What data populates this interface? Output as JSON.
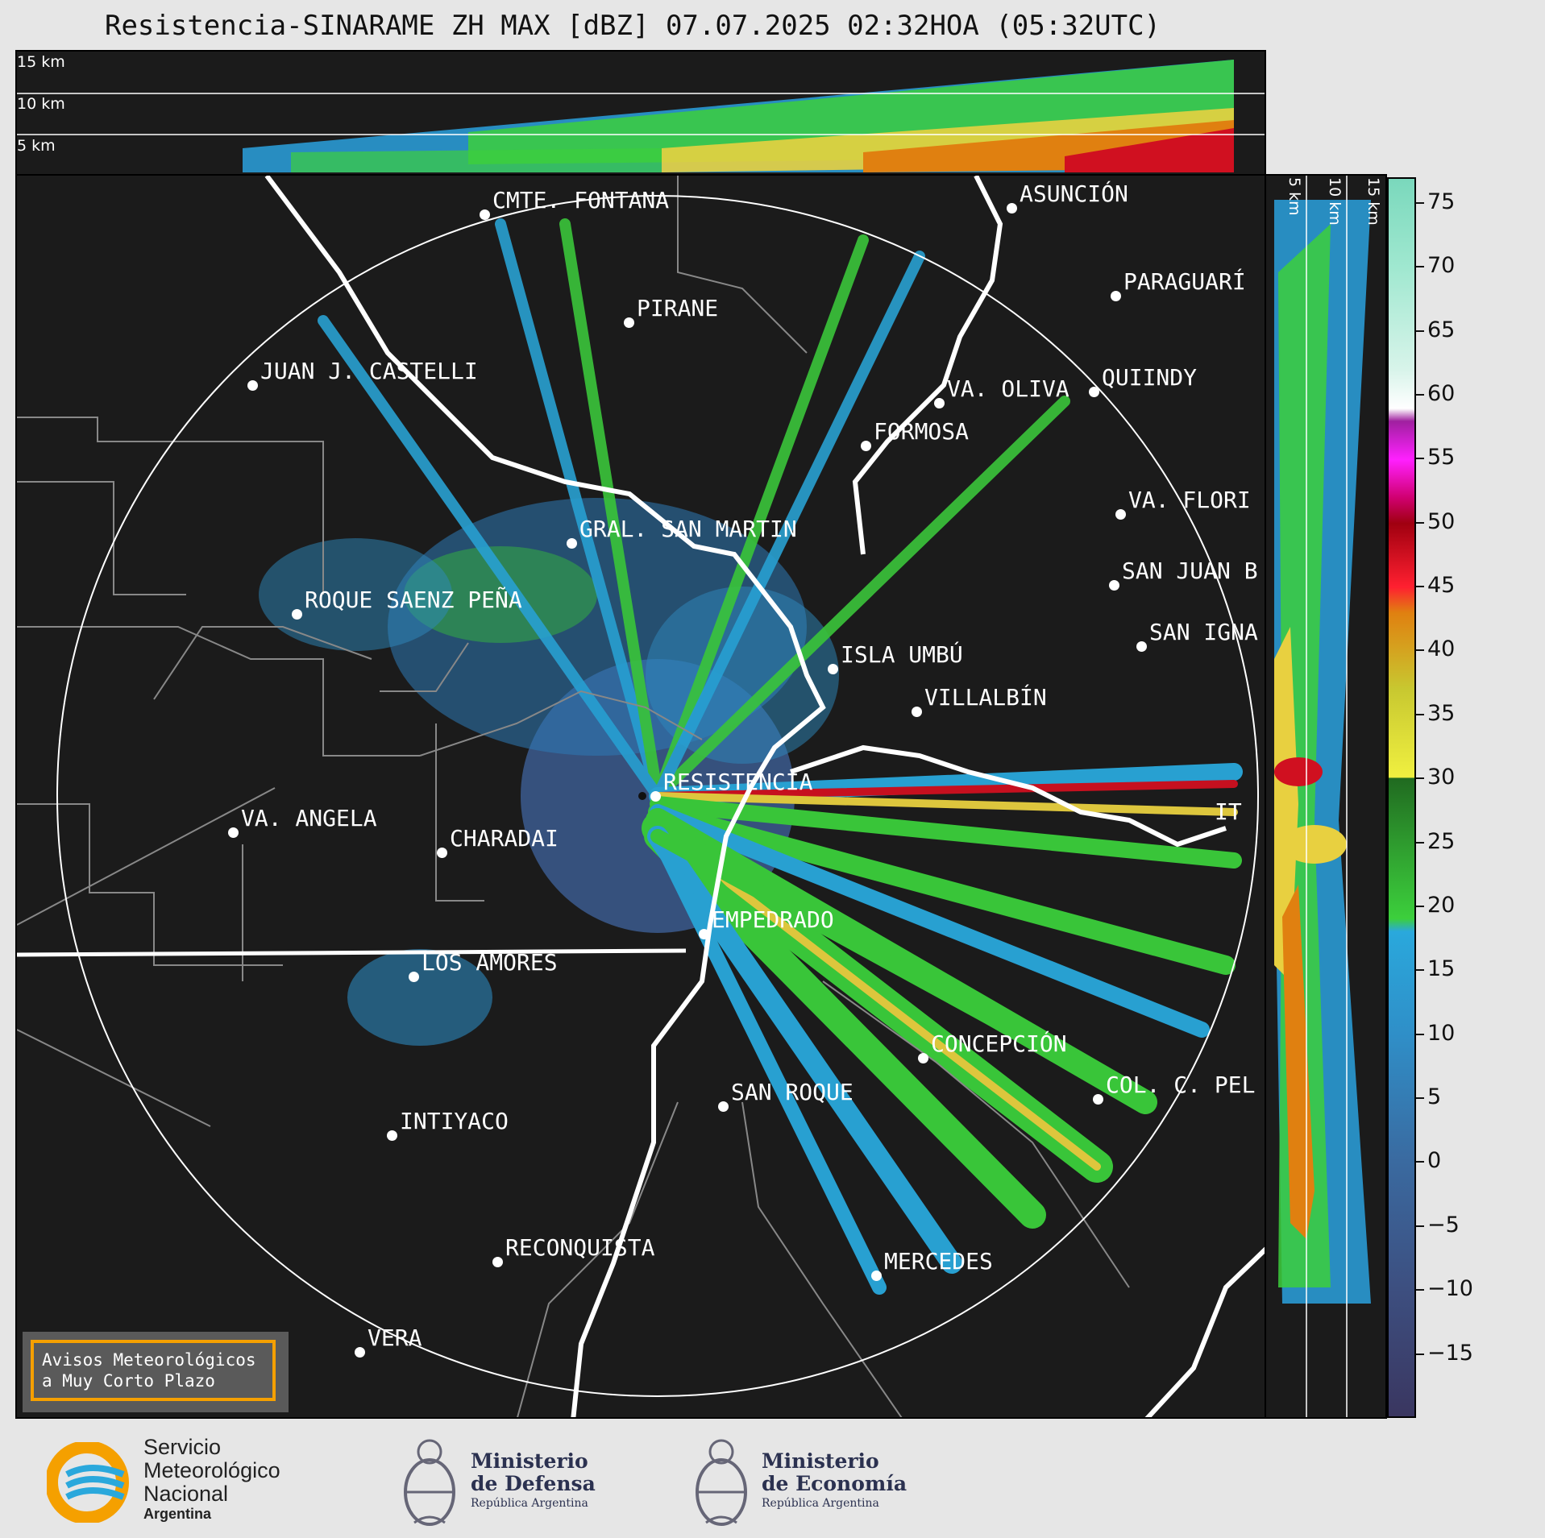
{
  "title": "Resistencia-SINARAME ZH MAX [dBZ] 07.07.2025 02:32HOA (05:32UTC)",
  "altitude_labels": [
    "15 km",
    "10 km",
    "5 km"
  ],
  "side_altitude_labels": [
    "5 km",
    "10 km",
    "15 km"
  ],
  "cities": [
    {
      "name": "CMTE. FONTANA"
    },
    {
      "name": "ASUNCIÓN"
    },
    {
      "name": "PARAGUARÍ"
    },
    {
      "name": "PIRANE"
    },
    {
      "name": "JUAN J. CASTELLI"
    },
    {
      "name": "VA. OLIVA"
    },
    {
      "name": "QUIINDY"
    },
    {
      "name": "FORMOSA"
    },
    {
      "name": "VA. FLORI"
    },
    {
      "name": "GRAL. SAN MARTIN"
    },
    {
      "name": "SAN JUAN B"
    },
    {
      "name": "ROQUE SAENZ PEÑA"
    },
    {
      "name": "SAN IGNA"
    },
    {
      "name": "ISLA UMBÚ"
    },
    {
      "name": "VILLALBÍN"
    },
    {
      "name": "RESISTENCIA"
    },
    {
      "name": "VA. ANGELA"
    },
    {
      "name": "CHARADAI"
    },
    {
      "name": "IT"
    },
    {
      "name": "EMPEDRADO"
    },
    {
      "name": "LOS AMORES"
    },
    {
      "name": "CONCEPCIÓN"
    },
    {
      "name": "SAN ROQUE"
    },
    {
      "name": "COL. C. PEL"
    },
    {
      "name": "INTIYACO"
    },
    {
      "name": "RECONQUISTA"
    },
    {
      "name": "MERCEDES"
    },
    {
      "name": "VERA"
    }
  ],
  "warning": {
    "line1": "Avisos Meteorológicos",
    "line2": "a Muy Corto Plazo"
  },
  "colorbar": {
    "unit": "dBZ",
    "range": [
      -20,
      77
    ],
    "ticks": [
      "75",
      "70",
      "65",
      "60",
      "55",
      "50",
      "45",
      "40",
      "35",
      "30",
      "25",
      "20",
      "15",
      "10",
      "5",
      "0",
      "−5",
      "−10",
      "−15"
    ],
    "tick_values": [
      75,
      70,
      65,
      60,
      55,
      50,
      45,
      40,
      35,
      30,
      25,
      20,
      15,
      10,
      5,
      0,
      -5,
      -10,
      -15
    ],
    "stops": [
      {
        "v": -20,
        "c": "#3a3660"
      },
      {
        "v": -10,
        "c": "#3d4f80"
      },
      {
        "v": 0,
        "c": "#3a6aa0"
      },
      {
        "v": 10,
        "c": "#2f8fc8"
      },
      {
        "v": 18,
        "c": "#2aa8dc"
      },
      {
        "v": 19,
        "c": "#3ccf3c"
      },
      {
        "v": 25,
        "c": "#2e9a2e"
      },
      {
        "v": 30,
        "c": "#206a20"
      },
      {
        "v": 30.1,
        "c": "#f0f040"
      },
      {
        "v": 37,
        "c": "#c8c830"
      },
      {
        "v": 43,
        "c": "#e08010"
      },
      {
        "v": 45,
        "c": "#ff2030"
      },
      {
        "v": 50,
        "c": "#a00010"
      },
      {
        "v": 52,
        "c": "#d00070"
      },
      {
        "v": 55,
        "c": "#ff20ff"
      },
      {
        "v": 58,
        "c": "#a020a0"
      },
      {
        "v": 59,
        "c": "#ffffff"
      },
      {
        "v": 62,
        "c": "#d8f4ea"
      },
      {
        "v": 70,
        "c": "#a0e8d0"
      },
      {
        "v": 77,
        "c": "#7ad8bc"
      }
    ]
  },
  "logos": {
    "smn": {
      "line1": "Servicio",
      "line2": "Meteorológico",
      "line3": "Nacional",
      "line4": "Argentina"
    },
    "defensa": {
      "line1": "Ministerio",
      "line2": "de Defensa",
      "line3": "República Argentina"
    },
    "economia": {
      "line1": "Ministerio",
      "line2": "de Economía",
      "line3": "República Argentina"
    }
  }
}
